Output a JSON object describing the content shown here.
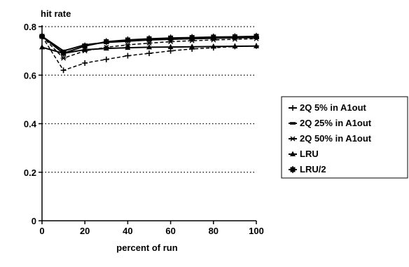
{
  "chart_data": {
    "type": "line",
    "title": "",
    "ylabel": "hit rate",
    "xlabel": "percent of run",
    "x": [
      0,
      10,
      20,
      30,
      40,
      50,
      60,
      70,
      80,
      90,
      100
    ],
    "xlim": [
      0,
      100
    ],
    "ylim": [
      0,
      0.8
    ],
    "xticks": [
      "0",
      "20",
      "40",
      "60",
      "80",
      "100"
    ],
    "yticks": [
      "0",
      "0.2",
      "0.4",
      "0.6",
      "0.8"
    ],
    "grid": "horizontal dotted",
    "legend_position": "right",
    "series": [
      {
        "name": "2Q 5% in A1out",
        "marker": "plus",
        "dash": "dashed",
        "values": [
          0.76,
          0.62,
          0.65,
          0.665,
          0.68,
          0.69,
          0.7,
          0.708,
          0.713,
          0.718,
          0.72
        ]
      },
      {
        "name": "2Q 25% in A1out",
        "marker": "dash",
        "dash": "solid",
        "values": [
          0.76,
          0.7,
          0.725,
          0.735,
          0.74,
          0.745,
          0.748,
          0.75,
          0.752,
          0.754,
          0.755
        ]
      },
      {
        "name": "2Q 50% in A1out",
        "marker": "star",
        "dash": "dashed",
        "values": [
          0.76,
          0.67,
          0.7,
          0.715,
          0.725,
          0.732,
          0.738,
          0.742,
          0.745,
          0.748,
          0.75
        ]
      },
      {
        "name": "LRU",
        "marker": "triangle",
        "dash": "solid",
        "values": [
          0.715,
          0.69,
          0.705,
          0.71,
          0.713,
          0.715,
          0.716,
          0.717,
          0.718,
          0.719,
          0.72
        ]
      },
      {
        "name": "LRU/2",
        "marker": "square",
        "dash": "solid",
        "values": [
          0.76,
          0.69,
          0.72,
          0.738,
          0.745,
          0.75,
          0.753,
          0.755,
          0.757,
          0.758,
          0.76
        ]
      }
    ]
  }
}
